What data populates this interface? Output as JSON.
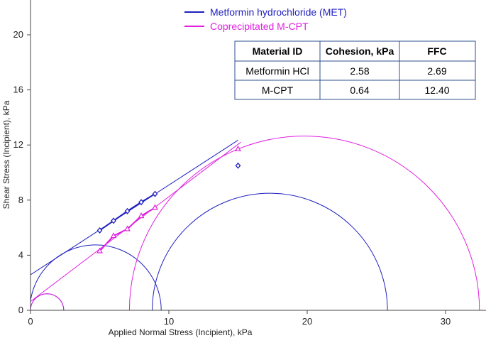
{
  "chart_data": {
    "type": "scatter",
    "title": "",
    "xlabel": "Applied Normal Stress (Incipient), kPa",
    "ylabel": "Shear Stress (Incipient), kPa",
    "xlim": [
      0,
      33
    ],
    "ylim": [
      0,
      22
    ],
    "x_ticks": [
      0,
      10,
      20,
      30
    ],
    "y_ticks": [
      0,
      4,
      8,
      12,
      16,
      20
    ],
    "grid": false,
    "legend_position": "top-center",
    "series": [
      {
        "name": "Metformin hydrochloride (MET)",
        "color": "#1f1fbf",
        "marker": "diamond",
        "points": [
          [
            5.0,
            5.8
          ],
          [
            6.0,
            6.5
          ],
          [
            7.0,
            7.2
          ],
          [
            8.0,
            7.85
          ],
          [
            9.0,
            8.45
          ],
          [
            15.0,
            10.5
          ]
        ],
        "yield_locus": [
          [
            0,
            2.58
          ],
          [
            15.0,
            12.35
          ]
        ],
        "mohr_circles": [
          {
            "center": 1.2,
            "radius": 1.2
          },
          {
            "center": 4.7,
            "radius": 4.75
          },
          {
            "center": 17.3,
            "radius": 8.5
          }
        ]
      },
      {
        "name": "Coprecipitated M-CPT",
        "color": "#e020e0",
        "marker": "triangle",
        "points": [
          [
            5.0,
            4.3
          ],
          [
            6.0,
            5.4
          ],
          [
            7.0,
            5.9
          ],
          [
            8.0,
            6.85
          ],
          [
            9.0,
            7.45
          ],
          [
            15.0,
            11.7
          ]
        ],
        "yield_locus": [
          [
            0,
            0.64
          ],
          [
            15.2,
            12.2
          ]
        ],
        "mohr_circles": [
          {
            "center": 1.2,
            "radius": 1.2
          },
          {
            "center": 19.8,
            "radius": 12.65
          }
        ]
      }
    ],
    "table": {
      "headers": [
        "Material ID",
        "Cohesion, kPa",
        "FFC"
      ],
      "rows": [
        [
          "Metformin HCl",
          "2.58",
          "2.69"
        ],
        [
          "M-CPT",
          "0.64",
          "12.40"
        ]
      ]
    }
  }
}
